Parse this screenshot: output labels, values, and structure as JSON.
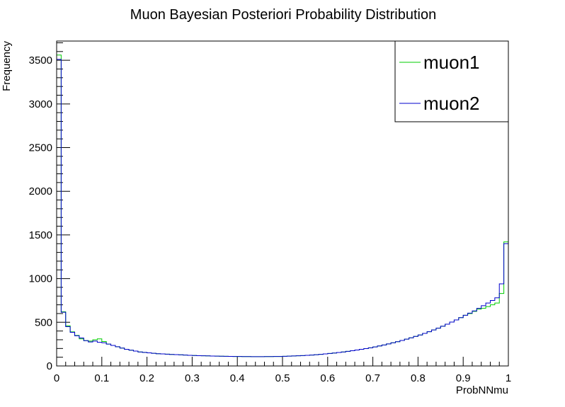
{
  "chart_data": {
    "type": "line",
    "style": "step-histogram",
    "title": "Muon Bayesian Posteriori Probability Distribution",
    "xlabel": "ProbNNmu",
    "ylabel": "Frequency",
    "xlim": [
      0,
      1
    ],
    "ylim": [
      0,
      3720
    ],
    "x_ticks": [
      0,
      0.1,
      0.2,
      0.3,
      0.4,
      0.5,
      0.6,
      0.7,
      0.8,
      0.9,
      1
    ],
    "x_tick_labels": [
      "0",
      "0.1",
      "0.2",
      "0.3",
      "0.4",
      "0.5",
      "0.6",
      "0.7",
      "0.8",
      "0.9",
      "1"
    ],
    "y_ticks": [
      0,
      500,
      1000,
      1500,
      2000,
      2500,
      3000,
      3500
    ],
    "y_tick_labels": [
      "0",
      "500",
      "1000",
      "1500",
      "2000",
      "2500",
      "3000",
      "3500"
    ],
    "bins": 100,
    "bin_width": 0.01,
    "grid": false,
    "legend_position": "top-right",
    "series": [
      {
        "name": "muon1",
        "color": "#00cc00",
        "values": [
          3560,
          620,
          460,
          390,
          350,
          310,
          290,
          285,
          300,
          310,
          280,
          250,
          235,
          220,
          205,
          190,
          180,
          170,
          160,
          155,
          150,
          145,
          140,
          138,
          135,
          132,
          130,
          128,
          125,
          122,
          120,
          118,
          116,
          115,
          113,
          112,
          111,
          110,
          109,
          108,
          108,
          107,
          107,
          106,
          106,
          106,
          107,
          107,
          108,
          108,
          110,
          112,
          114,
          116,
          119,
          122,
          125,
          129,
          133,
          138,
          143,
          148,
          154,
          160,
          167,
          174,
          182,
          190,
          199,
          208,
          218,
          229,
          240,
          252,
          265,
          278,
          292,
          307,
          322,
          338,
          355,
          373,
          392,
          412,
          433,
          455,
          478,
          502,
          527,
          553,
          580,
          600,
          625,
          650,
          660,
          680,
          700,
          720,
          830,
          1420
        ]
      },
      {
        "name": "muon2",
        "color": "#0000cc",
        "values": [
          3510,
          615,
          450,
          385,
          345,
          320,
          290,
          275,
          285,
          270,
          265,
          250,
          235,
          220,
          205,
          190,
          180,
          170,
          160,
          155,
          150,
          145,
          140,
          138,
          135,
          132,
          130,
          128,
          125,
          122,
          120,
          118,
          116,
          115,
          113,
          112,
          111,
          110,
          109,
          108,
          108,
          107,
          107,
          106,
          106,
          106,
          107,
          107,
          108,
          108,
          110,
          112,
          114,
          116,
          119,
          122,
          125,
          129,
          133,
          138,
          143,
          148,
          154,
          160,
          167,
          174,
          182,
          190,
          199,
          208,
          218,
          229,
          240,
          252,
          265,
          278,
          292,
          307,
          322,
          338,
          355,
          373,
          392,
          412,
          433,
          455,
          478,
          502,
          527,
          553,
          580,
          605,
          630,
          660,
          690,
          720,
          750,
          780,
          940,
          1400
        ]
      }
    ]
  }
}
